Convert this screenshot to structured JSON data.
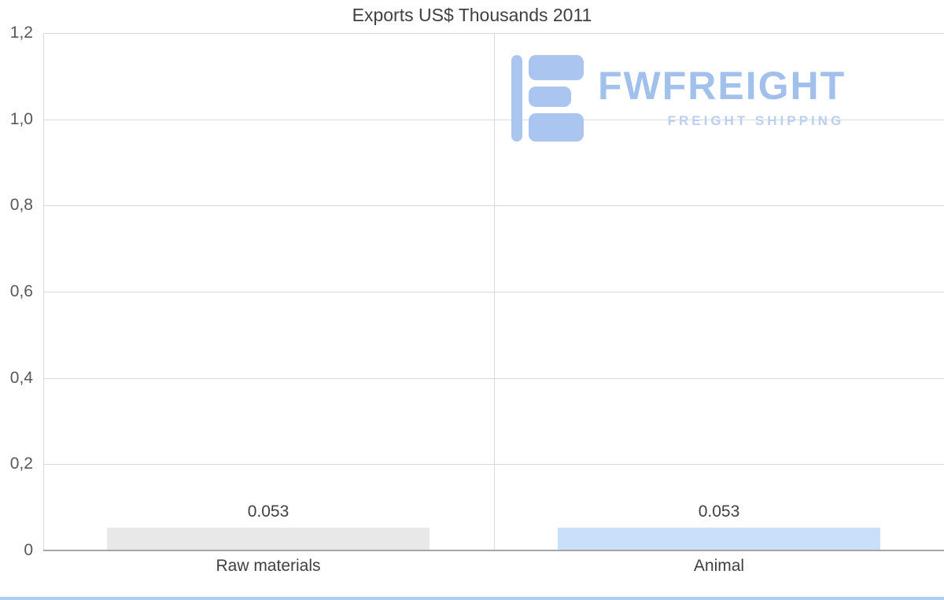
{
  "title": "Exports US$ Thousands 2011",
  "logo": {
    "name": "FWFREIGHT",
    "tagline": "FREIGHT SHIPPING",
    "icon_color": "#a6c4f0"
  },
  "colors": {
    "grid": "#d9d9d9",
    "axis": "#a6a6a6",
    "title_text": "#404040",
    "tick_text": "#595959",
    "label_text": "#404040",
    "edge_accent": "#aecdf4"
  },
  "chart_data": {
    "type": "bar",
    "title": "Exports US$ Thousands 2011",
    "categories": [
      "Raw materials",
      "Animal"
    ],
    "values": [
      0.053,
      0.053
    ],
    "value_labels": [
      "0.053",
      "0.053"
    ],
    "bar_colors": [
      "#e8e8e8",
      "#c9e0fa"
    ],
    "xlabel": "",
    "ylabel": "",
    "ylim": [
      0,
      1.2
    ],
    "ytick_step": 0.2,
    "ytick_labels": [
      "0",
      "0,2",
      "0,4",
      "0,6",
      "0,8",
      "1,0",
      "1,2"
    ],
    "grid": true,
    "legend": false,
    "category_divider": true
  }
}
